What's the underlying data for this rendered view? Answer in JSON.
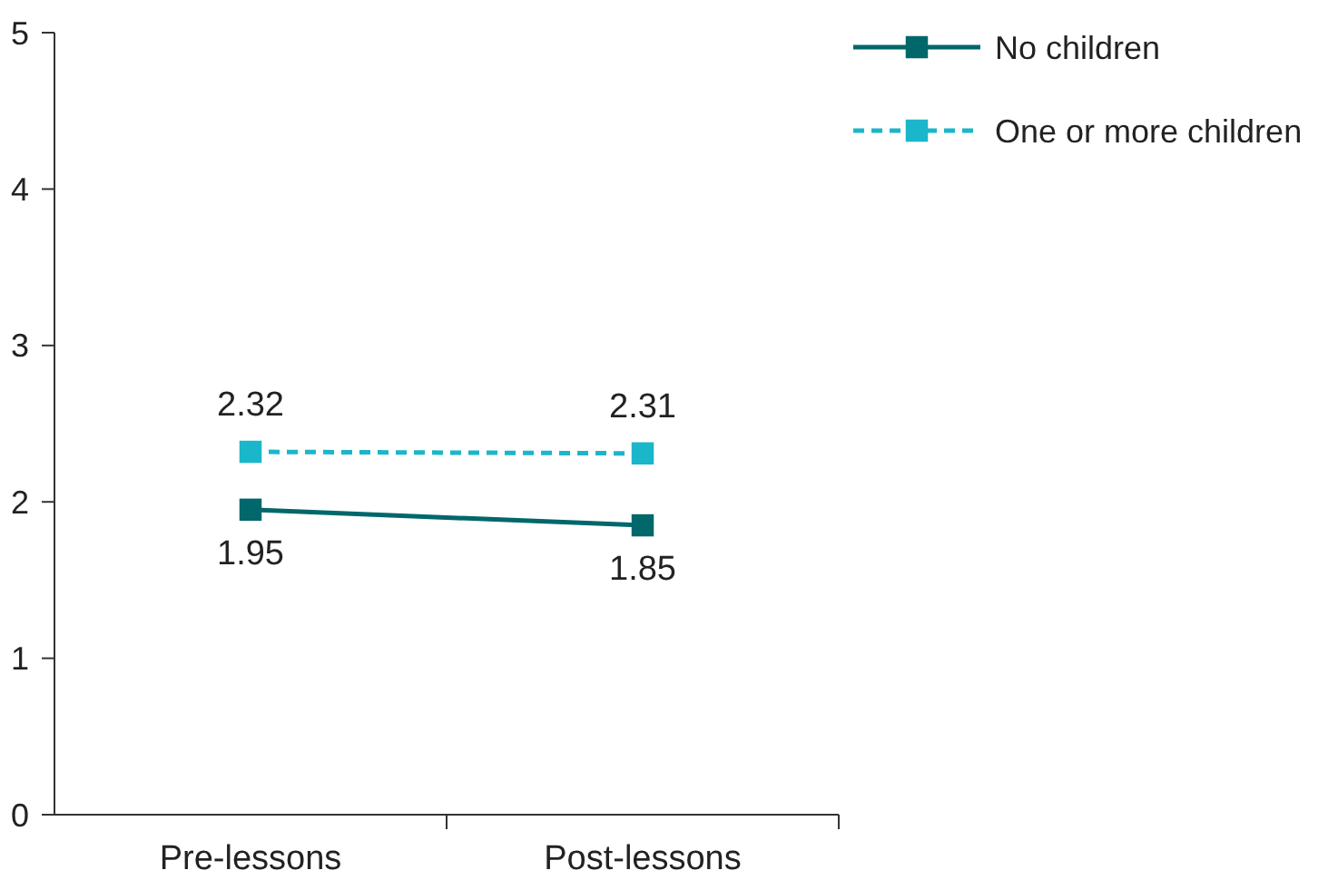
{
  "chart_data": {
    "type": "line",
    "categories": [
      "Pre-lessons",
      "Post-lessons"
    ],
    "series": [
      {
        "name": "No children",
        "color": "#00676b",
        "values": [
          1.95,
          1.85
        ],
        "line_style": "solid"
      },
      {
        "name": "One or more children",
        "color": "#1ab6c9",
        "values": [
          2.32,
          2.31
        ],
        "line_style": "dashed"
      }
    ],
    "ylim": [
      0,
      5
    ],
    "yticks": [
      0,
      1,
      2,
      3,
      4,
      5
    ],
    "grid": false,
    "legend": "top right",
    "marker": "square",
    "data_labels": true
  }
}
